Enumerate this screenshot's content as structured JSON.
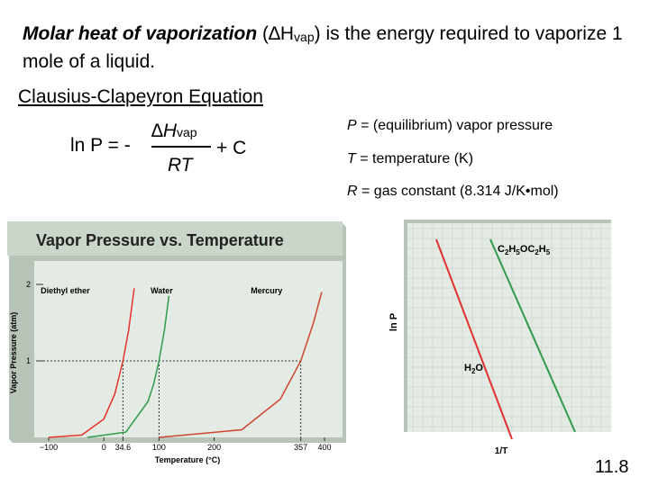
{
  "intro": {
    "term": "Molar heat of vaporization",
    "open": " (∆H",
    "sub": "vap",
    "rest": ") is the energy required to vaporize 1 mole of a liquid."
  },
  "equation": {
    "title": "Clausius-Clapeyron Equation",
    "lhs": "ln P = -",
    "num_main": "∆H",
    "num_sub": "vap",
    "den": "RT",
    "plus_c": "+ C"
  },
  "definitions": [
    {
      "sym": "P",
      "text": " = (equilibrium) vapor pressure"
    },
    {
      "sym": "T",
      "text": " = temperature (K)"
    },
    {
      "sym": "R",
      "text": " = gas constant (8.314 J/K•mol)"
    }
  ],
  "slide_number": "11.8",
  "colors": {
    "ether": "#e8332b",
    "water": "#2e9a4a",
    "mercury": "#d0452f",
    "panel": "#e4ebe4",
    "title_band": "#c9d6c9"
  },
  "chart_data": [
    {
      "type": "line",
      "title": "Vapor Pressure vs. Temperature",
      "xlabel": "Temperature (°C)",
      "ylabel": "Vapor Pressure (atm)",
      "xlim": [
        -100,
        400
      ],
      "ylim": [
        0,
        2
      ],
      "x_ticks": [
        "−100",
        "0",
        "34.6",
        "100",
        "200",
        "357",
        "400"
      ],
      "y_ticks": [
        "1",
        "2"
      ],
      "reference_line_y": 1,
      "reference_points_x": [
        34.6,
        100,
        357
      ],
      "series": [
        {
          "name": "Diethyl ether",
          "x": [
            -100,
            -40,
            0,
            20,
            34.6,
            45,
            55
          ],
          "y": [
            0,
            0.03,
            0.24,
            0.57,
            1.0,
            1.4,
            1.95
          ]
        },
        {
          "name": "Water",
          "x": [
            -30,
            40,
            80,
            90,
            100,
            110,
            118
          ],
          "y": [
            0,
            0.07,
            0.47,
            0.69,
            1.0,
            1.41,
            1.85
          ]
        },
        {
          "name": "Mercury",
          "x": [
            100,
            250,
            320,
            357,
            380,
            395
          ],
          "y": [
            0,
            0.1,
            0.5,
            1.0,
            1.5,
            1.9
          ]
        }
      ]
    },
    {
      "type": "line",
      "title": "",
      "xlabel": "1/T",
      "ylabel": "ln P",
      "series": [
        {
          "name": "C2H5OC2H5",
          "sub_parts": [
            "C",
            "2",
            "H",
            "5",
            "OC",
            "2",
            "H",
            "5"
          ],
          "x": [
            0,
            1
          ],
          "y": [
            1,
            0
          ]
        },
        {
          "name": "H2O",
          "sub_parts": [
            "H",
            "2",
            "O"
          ],
          "x": [
            0,
            1
          ],
          "y": [
            1,
            0
          ]
        }
      ]
    }
  ]
}
